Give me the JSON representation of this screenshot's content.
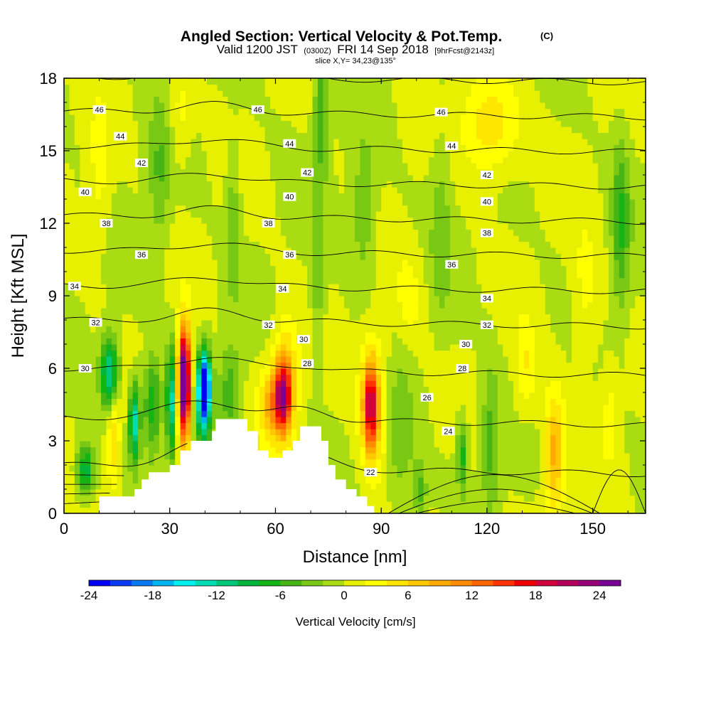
{
  "title": {
    "main": "Angled Section: Vertical Velocity & Pot.Temp.",
    "main_tag": "(C)",
    "valid_prefix": "Valid 1200 JST",
    "valid_zulu": "(0300Z)",
    "valid_date": "FRI 14 Sep 2018",
    "forecast_tag": "[9hrFcst@2143z]",
    "slice": "slice X,Y= 34,23@135°"
  },
  "chart_data": {
    "type": "heatmap",
    "xlabel": "Distance [nm]",
    "ylabel": "Height [Kft MSL]",
    "xlim": [
      0,
      165
    ],
    "ylim": [
      0,
      18
    ],
    "x_ticks": [
      "0",
      "30",
      "60",
      "90",
      "120",
      "150"
    ],
    "x_tick_values": [
      0,
      30,
      60,
      90,
      120,
      150
    ],
    "y_ticks": [
      "0",
      "3",
      "6",
      "9",
      "12",
      "15",
      "18"
    ],
    "y_tick_values": [
      0,
      3,
      6,
      9,
      12,
      15,
      18
    ],
    "colorbar": {
      "label": "Vertical Velocity [cm/s]",
      "range": [
        -24,
        26
      ],
      "step": 2,
      "tick_labels": [
        "-24",
        "-18",
        "-12",
        "-6",
        "0",
        "6",
        "12",
        "18",
        "24"
      ],
      "tick_values": [
        -24,
        -18,
        -12,
        -6,
        0,
        6,
        12,
        18,
        24
      ],
      "colors": [
        "#0000f5",
        "#0a3cf5",
        "#0a78f0",
        "#00b4f0",
        "#00f0f0",
        "#00dcb4",
        "#00c878",
        "#00b43c",
        "#14b414",
        "#46b414",
        "#78c814",
        "#aadc14",
        "#e6f000",
        "#ffff00",
        "#ffe600",
        "#ffc800",
        "#ffaa00",
        "#ff8c00",
        "#ff6400",
        "#ff3200",
        "#f00000",
        "#d2003c",
        "#b4005a",
        "#960078",
        "#780096"
      ]
    },
    "terrain": [
      [
        0,
        0
      ],
      [
        10,
        0
      ],
      [
        10,
        0.7
      ],
      [
        20,
        0.7
      ],
      [
        20,
        1.0
      ],
      [
        22,
        1.0
      ],
      [
        22,
        1.4
      ],
      [
        24,
        1.4
      ],
      [
        24,
        1.7
      ],
      [
        30,
        1.7
      ],
      [
        30,
        2.0
      ],
      [
        33,
        2.0
      ],
      [
        33,
        2.6
      ],
      [
        36,
        2.6
      ],
      [
        36,
        3.0
      ],
      [
        42,
        3.0
      ],
      [
        42,
        3.4
      ],
      [
        43,
        3.4
      ],
      [
        43,
        3.9
      ],
      [
        52,
        3.9
      ],
      [
        52,
        3.4
      ],
      [
        55,
        3.4
      ],
      [
        55,
        2.6
      ],
      [
        58,
        2.6
      ],
      [
        58,
        2.3
      ],
      [
        62,
        2.3
      ],
      [
        62,
        2.6
      ],
      [
        65,
        2.6
      ],
      [
        65,
        3.0
      ],
      [
        67,
        3.0
      ],
      [
        67,
        3.6
      ],
      [
        73,
        3.6
      ],
      [
        73,
        3.0
      ],
      [
        75,
        3.0
      ],
      [
        75,
        2.0
      ],
      [
        77,
        2.0
      ],
      [
        77,
        1.4
      ],
      [
        80,
        1.4
      ],
      [
        80,
        1.0
      ],
      [
        83,
        1.0
      ],
      [
        83,
        0.7
      ],
      [
        86,
        0.7
      ],
      [
        86,
        0.3
      ],
      [
        88,
        0.3
      ],
      [
        88,
        0
      ],
      [
        90,
        0
      ]
    ],
    "theta_levels": [
      22,
      24,
      26,
      28,
      30,
      32,
      34,
      36,
      38,
      40,
      42,
      44,
      46
    ],
    "contour_labels": [
      {
        "text": "46",
        "x": 10,
        "y": 16.7
      },
      {
        "text": "46",
        "x": 55,
        "y": 16.7
      },
      {
        "text": "46",
        "x": 107,
        "y": 16.6
      },
      {
        "text": "44",
        "x": 16,
        "y": 15.6
      },
      {
        "text": "44",
        "x": 64,
        "y": 15.3
      },
      {
        "text": "44",
        "x": 110,
        "y": 15.2
      },
      {
        "text": "42",
        "x": 22,
        "y": 14.5
      },
      {
        "text": "42",
        "x": 69,
        "y": 14.1
      },
      {
        "text": "42",
        "x": 120,
        "y": 14.0
      },
      {
        "text": "40",
        "x": 6,
        "y": 13.3
      },
      {
        "text": "40",
        "x": 64,
        "y": 13.1
      },
      {
        "text": "40",
        "x": 120,
        "y": 12.9
      },
      {
        "text": "38",
        "x": 12,
        "y": 12.0
      },
      {
        "text": "38",
        "x": 58,
        "y": 12.0
      },
      {
        "text": "38",
        "x": 120,
        "y": 11.6
      },
      {
        "text": "36",
        "x": 22,
        "y": 10.7
      },
      {
        "text": "36",
        "x": 64,
        "y": 10.7
      },
      {
        "text": "36",
        "x": 110,
        "y": 10.3
      },
      {
        "text": "34",
        "x": 3,
        "y": 9.4
      },
      {
        "text": "34",
        "x": 62,
        "y": 9.3
      },
      {
        "text": "34",
        "x": 120,
        "y": 8.9
      },
      {
        "text": "32",
        "x": 9,
        "y": 7.9
      },
      {
        "text": "32",
        "x": 58,
        "y": 7.8
      },
      {
        "text": "32",
        "x": 120,
        "y": 7.8
      },
      {
        "text": "30",
        "x": 6,
        "y": 6.0
      },
      {
        "text": "30",
        "x": 68,
        "y": 7.2
      },
      {
        "text": "30",
        "x": 114,
        "y": 7.0
      },
      {
        "text": "28",
        "x": 69,
        "y": 6.2
      },
      {
        "text": "28",
        "x": 113,
        "y": 6.0
      },
      {
        "text": "26",
        "x": 103,
        "y": 4.8
      },
      {
        "text": "24",
        "x": 109,
        "y": 3.4
      },
      {
        "text": "22",
        "x": 87,
        "y": 1.7
      }
    ],
    "blobs": [
      {
        "x": 34,
        "y": 5.5,
        "sx": 1.6,
        "sy": 2.0,
        "v": 24
      },
      {
        "x": 34.5,
        "y": 5.0,
        "sx": 2.2,
        "sy": 3.0,
        "v": 8
      },
      {
        "x": 40,
        "y": 5.2,
        "sx": 1.6,
        "sy": 1.4,
        "v": -24
      },
      {
        "x": 39,
        "y": 4.5,
        "sx": 2.4,
        "sy": 2.0,
        "v": -8
      },
      {
        "x": 30.5,
        "y": 4.6,
        "sx": 1.4,
        "sy": 2.2,
        "v": -13
      },
      {
        "x": 25,
        "y": 4.5,
        "sx": 2.5,
        "sy": 2.0,
        "v": -8
      },
      {
        "x": 20,
        "y": 3.8,
        "sx": 1.5,
        "sy": 1.6,
        "v": -14
      },
      {
        "x": 13,
        "y": 5.8,
        "sx": 2.5,
        "sy": 1.5,
        "v": -14
      },
      {
        "x": 6,
        "y": 1.8,
        "sx": 2.5,
        "sy": 1.0,
        "v": -10
      },
      {
        "x": 14,
        "y": 3.5,
        "sx": 1.8,
        "sy": 2.5,
        "v": 6
      },
      {
        "x": 58,
        "y": 4.5,
        "sx": 3.0,
        "sy": 1.5,
        "v": 7
      },
      {
        "x": 62,
        "y": 4.8,
        "sx": 2.4,
        "sy": 1.4,
        "v": 18
      },
      {
        "x": 63,
        "y": 5.5,
        "sx": 3.5,
        "sy": 2.5,
        "v": 7
      },
      {
        "x": 47,
        "y": 5.0,
        "sx": 3.0,
        "sy": 2.0,
        "v": -5
      },
      {
        "x": 87,
        "y": 4.5,
        "sx": 2.0,
        "sy": 1.8,
        "v": 16
      },
      {
        "x": 88,
        "y": 4.5,
        "sx": 4.5,
        "sy": 3.0,
        "v": 6
      },
      {
        "x": 95,
        "y": 3.0,
        "sx": 4.0,
        "sy": 3.0,
        "v": -4
      },
      {
        "x": 72,
        "y": 10.0,
        "sx": 2.0,
        "sy": 3.5,
        "v": -4
      },
      {
        "x": 73,
        "y": 16.5,
        "sx": 2.0,
        "sy": 2.5,
        "v": -6
      },
      {
        "x": 113,
        "y": 2.5,
        "sx": 1.5,
        "sy": 1.5,
        "v": -7
      },
      {
        "x": 121,
        "y": 3.0,
        "sx": 2.5,
        "sy": 3.0,
        "v": -5
      },
      {
        "x": 139,
        "y": 2.5,
        "sx": 3.0,
        "sy": 2.5,
        "v": 9
      },
      {
        "x": 158,
        "y": 12.0,
        "sx": 2.5,
        "sy": 3.5,
        "v": -6
      },
      {
        "x": 121,
        "y": 16.0,
        "sx": 8.0,
        "sy": 2.0,
        "v": 6
      },
      {
        "x": 27,
        "y": 14.0,
        "sx": 3.0,
        "sy": 3.0,
        "v": -4
      },
      {
        "x": 33,
        "y": 16.5,
        "sx": 3.0,
        "sy": 2.0,
        "v": 3
      },
      {
        "x": 85,
        "y": 12.5,
        "sx": 3.5,
        "sy": 3.0,
        "v": -4
      },
      {
        "x": 107,
        "y": 12.0,
        "sx": 3.0,
        "sy": 4.0,
        "v": -3
      },
      {
        "x": 98,
        "y": 9.0,
        "sx": 4.0,
        "sy": 2.0,
        "v": 3
      },
      {
        "x": 148,
        "y": 9.0,
        "sx": 4.0,
        "sy": 3.0,
        "v": 3
      },
      {
        "x": 131,
        "y": 6.0,
        "sx": 3.0,
        "sy": 2.0,
        "v": 4
      },
      {
        "x": 48,
        "y": 12.0,
        "sx": 2.0,
        "sy": 3.0,
        "v": -4
      },
      {
        "x": 155,
        "y": 4.0,
        "sx": 2.5,
        "sy": 2.0,
        "v": 3
      },
      {
        "x": 101,
        "y": 1.0,
        "sx": 2.0,
        "sy": 1.2,
        "v": -5
      },
      {
        "x": 10,
        "y": 14.0,
        "sx": 3.0,
        "sy": 3.0,
        "v": 3
      }
    ]
  }
}
